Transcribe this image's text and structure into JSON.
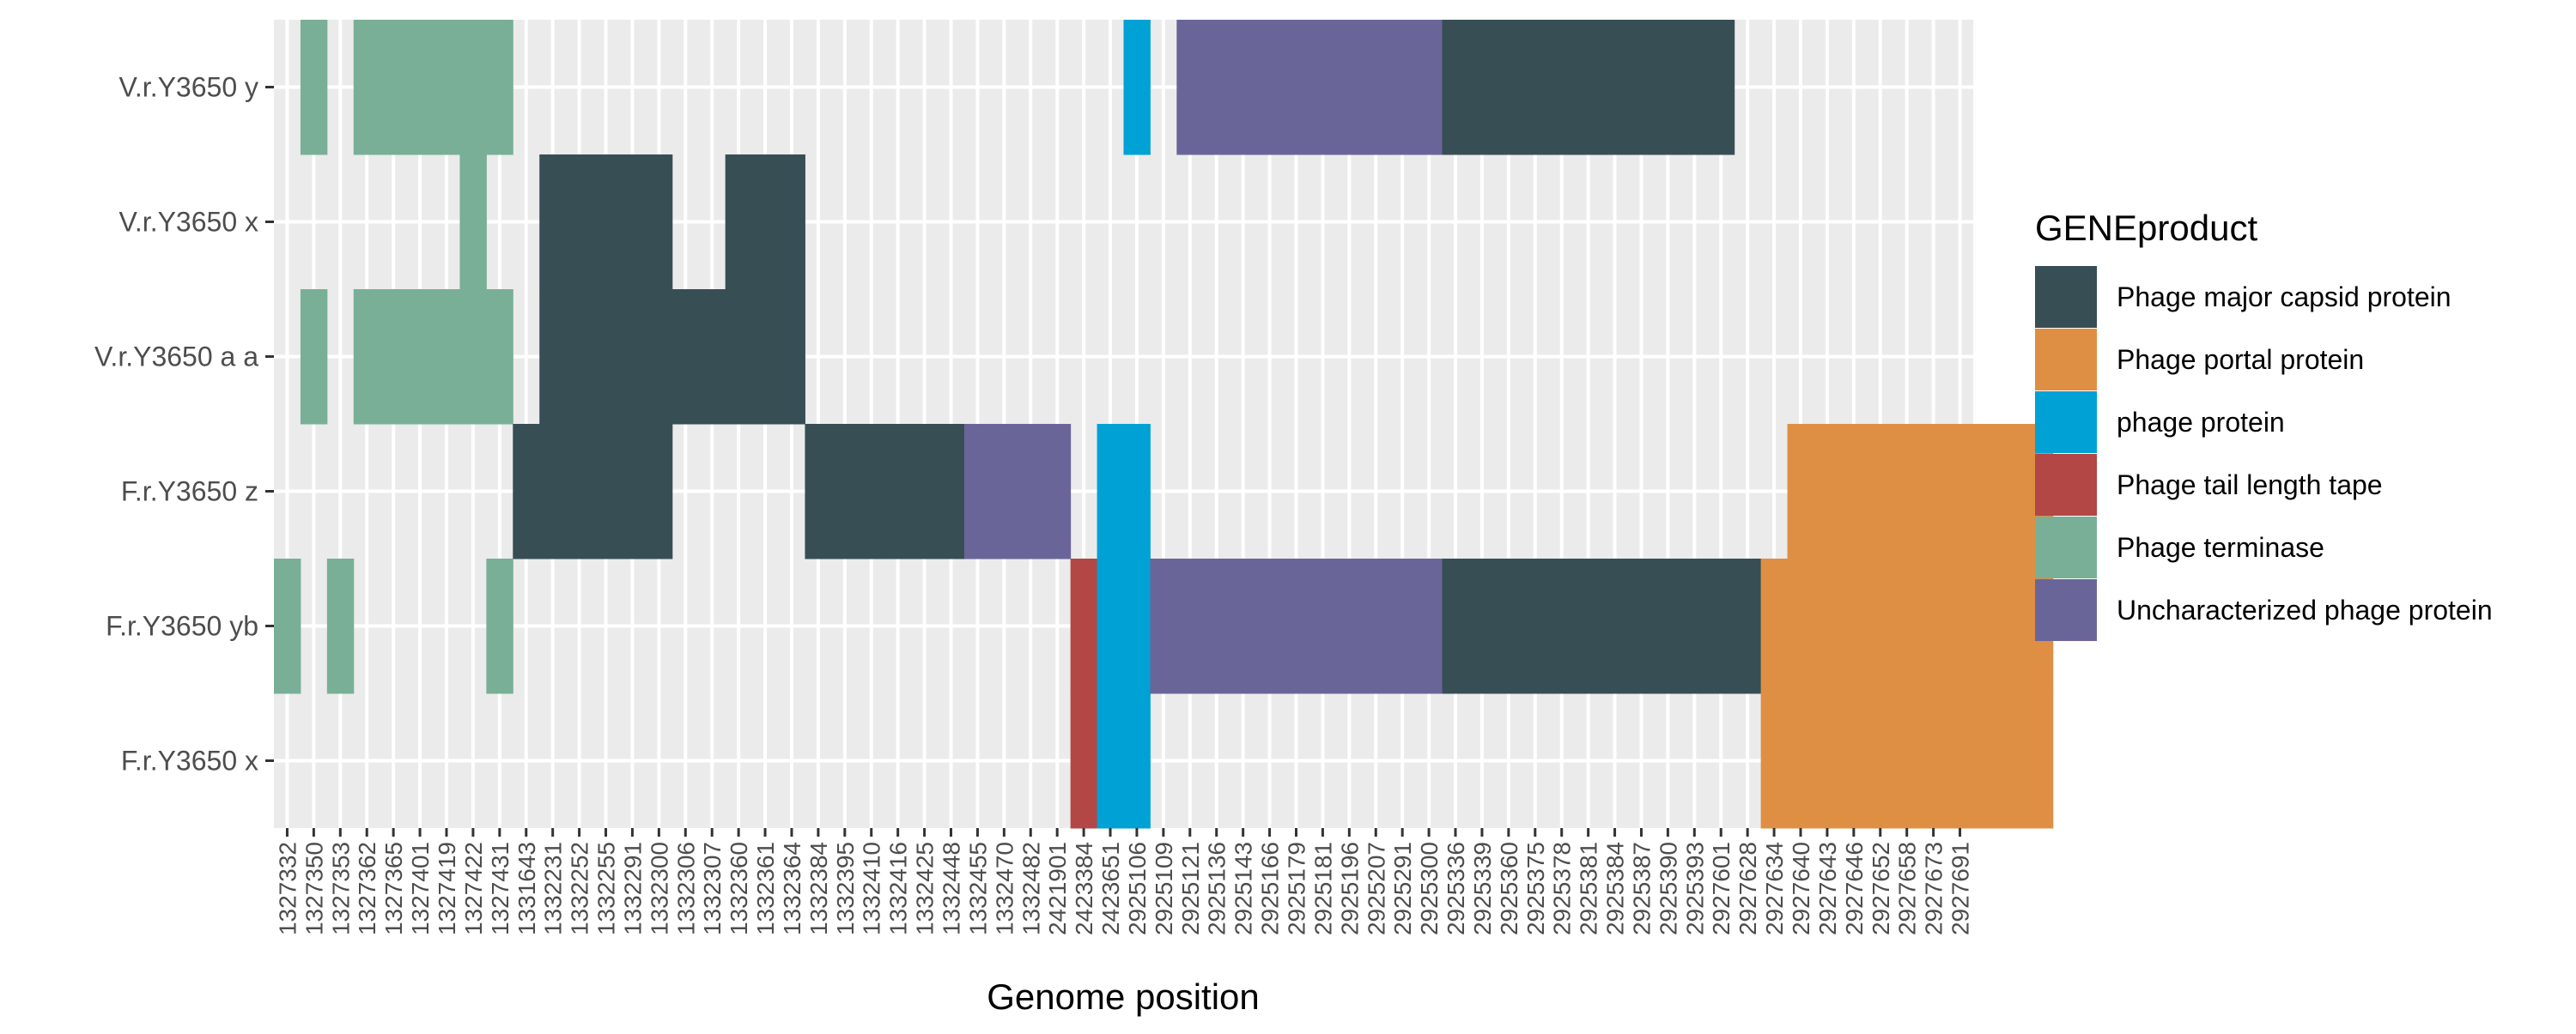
{
  "chart_data": {
    "type": "heatmap",
    "title": "",
    "xlabel": "Genome position",
    "ylabel": "",
    "x_categories": [
      "1327332",
      "1327350",
      "1327353",
      "1327362",
      "1327365",
      "1327401",
      "1327419",
      "1327422",
      "1327431",
      "1331643",
      "1332231",
      "1332252",
      "1332255",
      "1332291",
      "1332300",
      "1332306",
      "1332307",
      "1332360",
      "1332361",
      "1332364",
      "1332384",
      "1332395",
      "1332410",
      "1332416",
      "1332425",
      "1332448",
      "1332455",
      "1332470",
      "1332482",
      "2421901",
      "2423384",
      "2423651",
      "2925106",
      "2925109",
      "2925121",
      "2925136",
      "2925143",
      "2925166",
      "2925179",
      "2925181",
      "2925196",
      "2925207",
      "2925291",
      "2925300",
      "2925336",
      "2925339",
      "2925360",
      "2925375",
      "2925378",
      "2925381",
      "2925384",
      "2925387",
      "2925390",
      "2925393",
      "2927601",
      "2927628",
      "2927634",
      "2927640",
      "2927643",
      "2927646",
      "2927652",
      "2927658",
      "2927673",
      "2927691"
    ],
    "y_categories": [
      "V.r.Y3650 y",
      "V.r.Y3650 x",
      "V.r.Y3650 a a",
      "F.r.Y3650 z",
      "F.r.Y3650 yb",
      "F.r.Y3650 x"
    ],
    "legend": {
      "title": "GENEproduct",
      "position": "right",
      "entries": [
        {
          "label": "Phage major capsid protein",
          "color": "#374E55"
        },
        {
          "label": "Phage portal protein",
          "color": "#DF8F44"
        },
        {
          "label": "phage protein",
          "color": "#00A1D5"
        },
        {
          "label": "Phage tail length tape",
          "color": "#B24745"
        },
        {
          "label": "Phage terminase",
          "color": "#79AF97"
        },
        {
          "label": "Uncharacterized phage protein",
          "color": "#6A6599"
        }
      ]
    },
    "grid": true,
    "panel_background": "#EBEBEB",
    "tiles": [
      {
        "row": 0,
        "from": 1,
        "to": 1,
        "product": 4
      },
      {
        "row": 0,
        "from": 3,
        "to": 8,
        "product": 4
      },
      {
        "row": 0,
        "from": 32,
        "to": 32,
        "product": 2
      },
      {
        "row": 0,
        "from": 34,
        "to": 43,
        "product": 5
      },
      {
        "row": 0,
        "from": 44,
        "to": 54,
        "product": 0
      },
      {
        "row": 1,
        "from": 7,
        "to": 7,
        "product": 4
      },
      {
        "row": 1,
        "from": 10,
        "to": 14,
        "product": 0
      },
      {
        "row": 1,
        "from": 17,
        "to": 19,
        "product": 0
      },
      {
        "row": 2,
        "from": 1,
        "to": 1,
        "product": 4
      },
      {
        "row": 2,
        "from": 3,
        "to": 8,
        "product": 4
      },
      {
        "row": 2,
        "from": 10,
        "to": 19,
        "product": 0
      },
      {
        "row": 3,
        "from": 9,
        "to": 14,
        "product": 0
      },
      {
        "row": 3,
        "from": 20,
        "to": 25,
        "product": 0
      },
      {
        "row": 3,
        "from": 26,
        "to": 29,
        "product": 5
      },
      {
        "row": 3,
        "from": 31,
        "to": 32,
        "product": 2
      },
      {
        "row": 3,
        "from": 57,
        "to": 66,
        "product": 1
      },
      {
        "row": 4,
        "from": 0,
        "to": 0,
        "product": 4
      },
      {
        "row": 4,
        "from": 2,
        "to": 2,
        "product": 4
      },
      {
        "row": 4,
        "from": 8,
        "to": 8,
        "product": 4
      },
      {
        "row": 4,
        "from": 30,
        "to": 30,
        "product": 3
      },
      {
        "row": 4,
        "from": 31,
        "to": 32,
        "product": 2
      },
      {
        "row": 4,
        "from": 33,
        "to": 43,
        "product": 5
      },
      {
        "row": 4,
        "from": 44,
        "to": 55,
        "product": 0
      },
      {
        "row": 4,
        "from": 56,
        "to": 66,
        "product": 1
      },
      {
        "row": 5,
        "from": 30,
        "to": 30,
        "product": 3
      },
      {
        "row": 5,
        "from": 31,
        "to": 32,
        "product": 2
      },
      {
        "row": 5,
        "from": 56,
        "to": 66,
        "product": 1
      }
    ]
  }
}
